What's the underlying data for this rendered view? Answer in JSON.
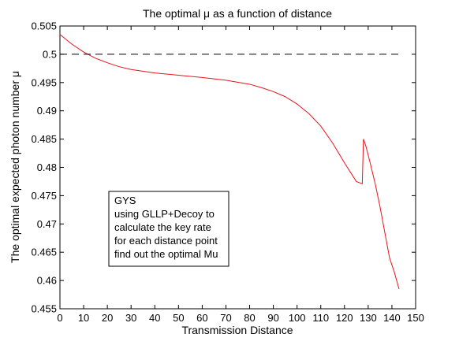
{
  "chart_data": {
    "type": "line",
    "title": "The optimal μ as a function of distance",
    "xlabel": "Transmission Distance",
    "ylabel": "The optimal expected photon number μ",
    "xlim": [
      0,
      150
    ],
    "ylim": [
      0.455,
      0.505
    ],
    "xticks": [
      0,
      10,
      20,
      30,
      40,
      50,
      60,
      70,
      80,
      90,
      100,
      110,
      120,
      130,
      140,
      150
    ],
    "xtick_labels": [
      "0",
      "10",
      "20",
      "30",
      "40",
      "50",
      "60",
      "70",
      "80",
      "90",
      "100",
      "110",
      "120",
      "130",
      "140",
      "150"
    ],
    "yticks": [
      0.455,
      0.46,
      0.465,
      0.47,
      0.475,
      0.48,
      0.485,
      0.49,
      0.495,
      0.5,
      0.505
    ],
    "ytick_labels": [
      "0.455",
      "0.46",
      "0.465",
      "0.47",
      "0.475",
      "0.48",
      "0.485",
      "0.49",
      "0.495",
      "0.5",
      "0.505"
    ],
    "grid": false,
    "series": [
      {
        "style": "solid",
        "color": "#e8141c",
        "x": [
          0,
          5,
          10,
          15,
          20,
          25,
          30,
          40,
          50,
          60,
          70,
          80,
          85,
          90,
          95,
          100,
          105,
          110,
          115,
          120,
          125,
          127.5,
          128,
          129,
          131,
          133,
          135,
          137,
          139,
          141,
          143
        ],
        "y": [
          0.5035,
          0.5018,
          0.5004,
          0.4993,
          0.4985,
          0.4978,
          0.4973,
          0.4967,
          0.4963,
          0.4959,
          0.4954,
          0.4947,
          0.4941,
          0.4934,
          0.4925,
          0.4912,
          0.4895,
          0.4873,
          0.4843,
          0.4808,
          0.4775,
          0.4771,
          0.485,
          0.4838,
          0.4805,
          0.477,
          0.473,
          0.4685,
          0.464,
          0.4615,
          0.4585
        ]
      },
      {
        "style": "dashed",
        "color": "#000000",
        "x": [
          0,
          143
        ],
        "y": [
          0.5,
          0.5
        ]
      }
    ],
    "annotations": [
      {
        "lines": [
          "GYS",
          "using GLLP+Decoy to",
          "calculate the key rate",
          "for each distance point",
          "find out the optimal Mu"
        ]
      }
    ]
  }
}
